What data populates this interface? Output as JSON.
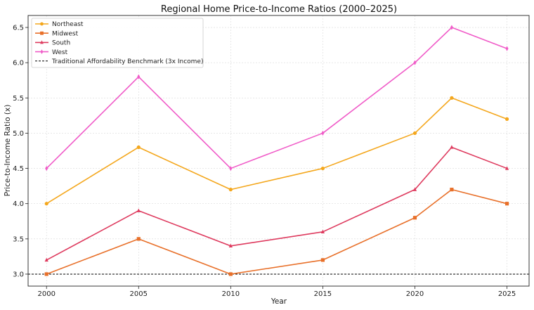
{
  "chart_data": {
    "type": "line",
    "title": "Regional Home Price-to-Income Ratios (2000–2025)",
    "xlabel": "Year",
    "ylabel": "Price-to-Income Ratio (x)",
    "x": [
      2000,
      2005,
      2010,
      2015,
      2020,
      2022,
      2025
    ],
    "x_ticks": [
      2000,
      2005,
      2010,
      2015,
      2020,
      2025
    ],
    "y_ticks": [
      3.0,
      3.5,
      4.0,
      4.5,
      5.0,
      5.5,
      6.0,
      6.5
    ],
    "xlim": [
      1999,
      2026.2
    ],
    "ylim": [
      2.83,
      6.67
    ],
    "grid": true,
    "legend_position": "top-left",
    "series": [
      {
        "name": "Northeast",
        "color": "#f4a71d",
        "marker": "circle",
        "values": [
          4.0,
          4.8,
          4.2,
          4.5,
          5.0,
          5.5,
          5.2
        ]
      },
      {
        "name": "Midwest",
        "color": "#e8702a",
        "marker": "square",
        "values": [
          3.0,
          3.5,
          3.0,
          3.2,
          3.8,
          4.2,
          4.0
        ]
      },
      {
        "name": "South",
        "color": "#de3a5e",
        "marker": "triangle",
        "values": [
          3.2,
          3.9,
          3.4,
          3.6,
          4.2,
          4.8,
          4.5
        ]
      },
      {
        "name": "West",
        "color": "#f05bc8",
        "marker": "diamond",
        "values": [
          4.5,
          5.8,
          4.5,
          5.0,
          6.0,
          6.5,
          6.2
        ]
      }
    ],
    "benchmark": {
      "name": "Traditional Affordability Benchmark (3x Income)",
      "value": 3.0,
      "color": "#000000"
    }
  }
}
